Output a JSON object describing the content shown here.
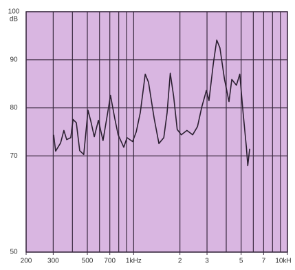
{
  "chart_data": {
    "type": "line",
    "y_unit": "dB",
    "x": [
      302,
      311,
      335,
      352,
      367,
      390,
      404,
      424,
      446,
      474,
      505,
      527,
      555,
      590,
      632,
      678,
      707,
      754,
      793,
      863,
      906,
      984,
      1040,
      1105,
      1190,
      1250,
      1360,
      1460,
      1570,
      1650,
      1730,
      1820,
      1920,
      2040,
      2220,
      2420,
      2600,
      2770,
      2970,
      3090,
      3300,
      3470,
      3640,
      3900,
      4170,
      4350,
      4660,
      4900,
      5150,
      5410,
      5520,
      5680
    ],
    "series": [
      {
        "color": "#2a1f30",
        "values": [
          74.4,
          71,
          72.7,
          75.3,
          73.4,
          73.8,
          77.6,
          76.9,
          71.1,
          70.3,
          79.5,
          77.2,
          74,
          77.4,
          73.2,
          79,
          82.6,
          77.8,
          74.4,
          71.8,
          73.8,
          73,
          75,
          79,
          87,
          85.3,
          77.8,
          72.6,
          73.8,
          79,
          87.2,
          82.4,
          75.5,
          74.4,
          75.3,
          74.4,
          76.1,
          80.1,
          83.6,
          81.5,
          89.3,
          94.1,
          92.5,
          85.9,
          81.3,
          85.9,
          84.7,
          87,
          79,
          71.8,
          68,
          71.5
        ]
      }
    ],
    "xscale": "log",
    "xlim": [
      200,
      10000
    ],
    "xticks": [
      200,
      300,
      500,
      700,
      {
        "value": 1000,
        "label": "1kHz"
      },
      {
        "value": 2000,
        "label": "2"
      },
      {
        "value": 3000,
        "label": "3"
      },
      {
        "value": 5000,
        "label": "5"
      },
      {
        "value": 7000,
        "label": "7"
      },
      {
        "value": 10000,
        "label": "10kH"
      }
    ],
    "xgrid": [
      200,
      300,
      400,
      500,
      600,
      700,
      800,
      900,
      1000,
      2000,
      3000,
      4000,
      5000,
      6000,
      7000,
      8000,
      9000,
      10000
    ],
    "ylim": [
      50,
      100
    ],
    "yticks": [
      50,
      70,
      80,
      90,
      100
    ],
    "grid": true,
    "background": "#d9b6e1"
  }
}
